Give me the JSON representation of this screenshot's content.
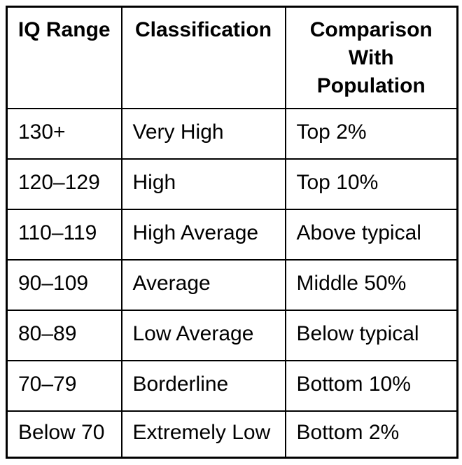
{
  "table": {
    "headers": [
      {
        "label": "IQ Range"
      },
      {
        "label": "Classification"
      },
      {
        "label": "Comparison With Population"
      }
    ],
    "rows": [
      {
        "iq_range": "130+",
        "classification": "Very High",
        "comparison": "Top 2%"
      },
      {
        "iq_range": "120–129",
        "classification": "High",
        "comparison": "Top 10%"
      },
      {
        "iq_range": "110–119",
        "classification": "High Average",
        "comparison": "Above typical"
      },
      {
        "iq_range": "90–109",
        "classification": "Average",
        "comparison": "Middle 50%"
      },
      {
        "iq_range": "80–89",
        "classification": "Low Average",
        "comparison": "Below typical"
      },
      {
        "iq_range": "70–79",
        "classification": "Borderline",
        "comparison": "Bottom 10%"
      },
      {
        "iq_range": "Below 70",
        "classification": "Extremely Low",
        "comparison": "Bottom 2%"
      }
    ],
    "colors": {
      "border": "#000000",
      "text": "#000000",
      "background": "#ffffff"
    }
  }
}
